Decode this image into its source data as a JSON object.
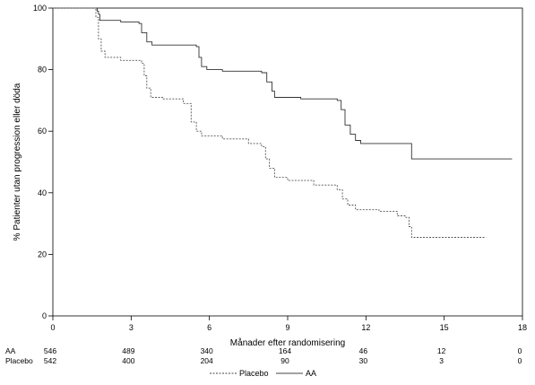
{
  "chart_data": {
    "type": "line",
    "title": "",
    "xlabel": "Månader efter randomisering",
    "ylabel": "% Patienter utan progression eller döda",
    "xlim": [
      0,
      18
    ],
    "ylim": [
      0,
      100
    ],
    "x_ticks": [
      0,
      3,
      6,
      9,
      12,
      15,
      18
    ],
    "y_ticks": [
      0,
      20,
      40,
      60,
      80,
      100
    ],
    "x_tick_labels": [
      "0",
      "3",
      "6",
      "9",
      "12",
      "15",
      "18"
    ],
    "y_tick_labels": [
      "0",
      "20",
      "40",
      "60",
      "80",
      "100"
    ],
    "grid": false,
    "legend_position": "bottom",
    "series": [
      {
        "name": "AA",
        "style": "solid",
        "color": "#333333",
        "points": [
          [
            0,
            100
          ],
          [
            1.65,
            100
          ],
          [
            1.7,
            99
          ],
          [
            1.75,
            98
          ],
          [
            1.8,
            96
          ],
          [
            2.6,
            95.5
          ],
          [
            3.3,
            95
          ],
          [
            3.4,
            92
          ],
          [
            3.6,
            89
          ],
          [
            3.8,
            88
          ],
          [
            5.5,
            87.5
          ],
          [
            5.6,
            84
          ],
          [
            5.7,
            81
          ],
          [
            5.9,
            80
          ],
          [
            6.5,
            79.5
          ],
          [
            8.0,
            79
          ],
          [
            8.2,
            76
          ],
          [
            8.4,
            73
          ],
          [
            8.5,
            71
          ],
          [
            9.5,
            70.5
          ],
          [
            10.9,
            70
          ],
          [
            11.05,
            67
          ],
          [
            11.2,
            62
          ],
          [
            11.4,
            59
          ],
          [
            11.6,
            57
          ],
          [
            11.8,
            56
          ],
          [
            13.75,
            56
          ],
          [
            13.75,
            51
          ],
          [
            17.6,
            51
          ]
        ]
      },
      {
        "name": "Placebo",
        "style": "dashed",
        "color": "#555555",
        "points": [
          [
            0,
            100
          ],
          [
            1.55,
            100
          ],
          [
            1.65,
            97
          ],
          [
            1.75,
            90
          ],
          [
            1.85,
            86
          ],
          [
            2.0,
            84
          ],
          [
            2.6,
            83
          ],
          [
            3.4,
            82
          ],
          [
            3.5,
            78
          ],
          [
            3.6,
            74
          ],
          [
            3.75,
            71
          ],
          [
            4.2,
            70.5
          ],
          [
            5.0,
            69
          ],
          [
            5.3,
            63
          ],
          [
            5.5,
            60
          ],
          [
            5.7,
            58.5
          ],
          [
            6.5,
            57.5
          ],
          [
            7.5,
            56
          ],
          [
            8.0,
            55
          ],
          [
            8.15,
            51
          ],
          [
            8.3,
            48
          ],
          [
            8.5,
            45
          ],
          [
            9.0,
            44
          ],
          [
            10.0,
            42.5
          ],
          [
            10.9,
            41
          ],
          [
            11.1,
            38
          ],
          [
            11.3,
            36
          ],
          [
            11.6,
            34.5
          ],
          [
            12.5,
            34
          ],
          [
            13.2,
            32.5
          ],
          [
            13.5,
            32
          ],
          [
            13.65,
            29
          ],
          [
            13.75,
            25.5
          ],
          [
            16.6,
            25.5
          ]
        ]
      }
    ],
    "risk_table": {
      "rows": [
        {
          "label": "AA",
          "values": [
            "546",
            "489",
            "340",
            "164",
            "46",
            "12",
            "0"
          ]
        },
        {
          "label": "Placebo",
          "values": [
            "542",
            "400",
            "204",
            "90",
            "30",
            "3",
            "0"
          ]
        }
      ]
    },
    "legend": [
      {
        "label": "Placebo",
        "style": "dashed"
      },
      {
        "label": "AA",
        "style": "solid"
      }
    ]
  }
}
